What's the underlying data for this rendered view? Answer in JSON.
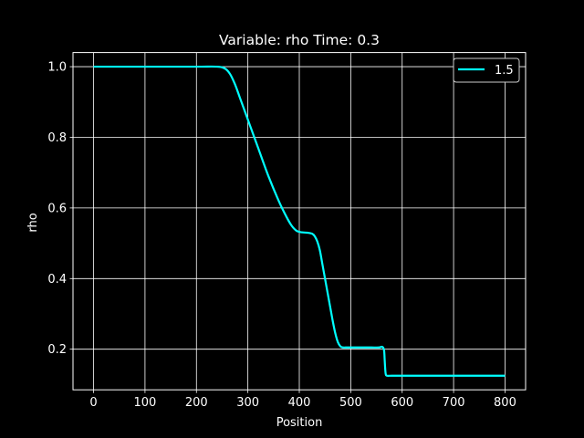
{
  "chart_data": {
    "type": "line",
    "title": "Variable: rho Time: 0.3",
    "xlabel": "Position",
    "ylabel": "rho",
    "xlim": [
      -40,
      840
    ],
    "ylim": [
      0.085,
      1.04
    ],
    "xticks": [
      0,
      100,
      200,
      300,
      400,
      500,
      600,
      700,
      800
    ],
    "yticks": [
      0.2,
      0.4,
      0.6,
      0.8,
      1.0
    ],
    "xtick_labels": [
      "0",
      "100",
      "200",
      "300",
      "400",
      "500",
      "600",
      "700",
      "800"
    ],
    "ytick_labels": [
      "0.2",
      "0.4",
      "0.6",
      "0.8",
      "1.0"
    ],
    "grid": true,
    "legend_position": "top-right",
    "colors": {
      "background": "#000000",
      "axes": "#ffffff",
      "grid": "#ffffff",
      "series": "#00ffff"
    },
    "series": [
      {
        "name": "1.5",
        "x": [
          0,
          100,
          200,
          240,
          255,
          265,
          275,
          285,
          295,
          305,
          320,
          340,
          360,
          375,
          385,
          395,
          405,
          415,
          425,
          430,
          435,
          440,
          445,
          450,
          455,
          460,
          465,
          470,
          475,
          480,
          485,
          490,
          500,
          520,
          540,
          555,
          560,
          563,
          565,
          566,
          567,
          568,
          570,
          580,
          600,
          700,
          800
        ],
        "y": [
          1.0,
          1.0,
          1.0,
          1.0,
          0.995,
          0.98,
          0.95,
          0.91,
          0.87,
          0.83,
          0.77,
          0.69,
          0.62,
          0.575,
          0.55,
          0.535,
          0.531,
          0.53,
          0.527,
          0.52,
          0.505,
          0.48,
          0.44,
          0.4,
          0.36,
          0.32,
          0.28,
          0.245,
          0.22,
          0.208,
          0.205,
          0.205,
          0.205,
          0.205,
          0.205,
          0.205,
          0.207,
          0.205,
          0.195,
          0.17,
          0.145,
          0.13,
          0.125,
          0.125,
          0.125,
          0.125,
          0.125
        ]
      }
    ]
  }
}
